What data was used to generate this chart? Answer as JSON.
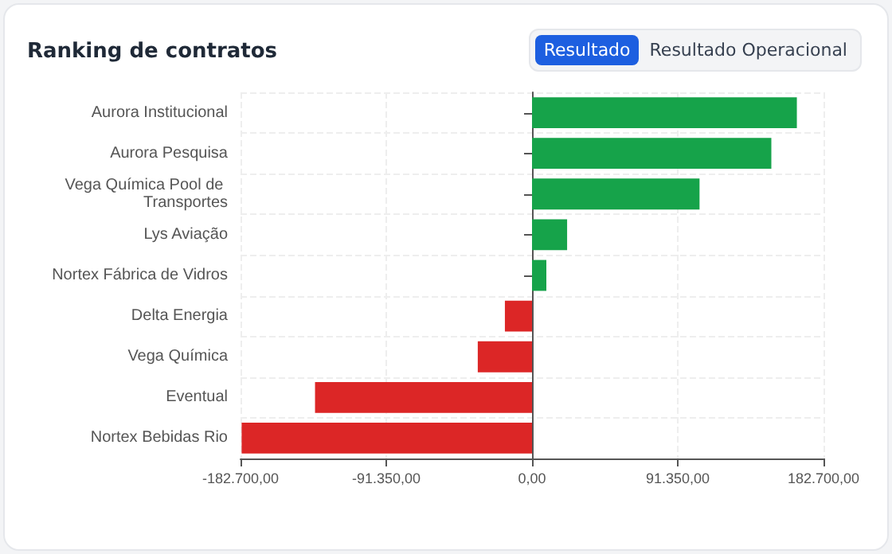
{
  "chart_data": {
    "type": "bar",
    "orientation": "horizontal",
    "title": "Ranking de contratos",
    "annotations": [
      "Resultado",
      "Resultado Operacional"
    ],
    "categories": [
      "Aurora Institucional",
      "Aurora Pesquisa",
      "Vega Química Pool de Transportes",
      "Lys Aviação",
      "Nortex Fábrica de Vidros",
      "Delta Energia",
      "Vega Química",
      "Eventual",
      "Nortex Bebidas Rio"
    ],
    "values": [
      166000,
      150000,
      105000,
      22000,
      9000,
      -17000,
      -34000,
      -136000,
      -182000
    ],
    "colors": [
      "#16a34a",
      "#16a34a",
      "#16a34a",
      "#16a34a",
      "#16a34a",
      "#dc2626",
      "#dc2626",
      "#dc2626",
      "#dc2626"
    ],
    "xlim": [
      -182700,
      182700
    ],
    "xticks": [
      {
        "value": -182700,
        "label": "-182.700,00"
      },
      {
        "value": -91350,
        "label": "-91.350,00"
      },
      {
        "value": 0,
        "label": "0,00"
      },
      {
        "value": 91350,
        "label": "91.350,00"
      },
      {
        "value": 182700,
        "label": "182.700,00"
      }
    ],
    "grid": true
  }
}
